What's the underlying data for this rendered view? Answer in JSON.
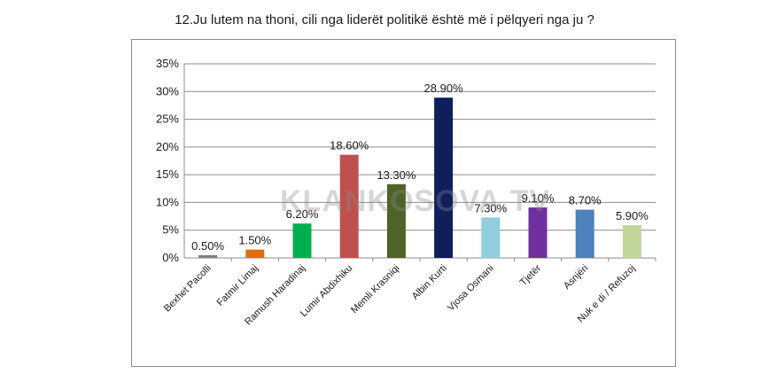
{
  "watermark": "KLANKOSOVA.TV",
  "chart_data": {
    "type": "bar",
    "title": "12.Ju lutem na thoni, cili nga liderët politikë është më i pëlqyeri nga ju ?",
    "xlabel": "",
    "ylabel": "",
    "ylim": [
      0,
      35
    ],
    "yticks": [
      "0%",
      "5%",
      "10%",
      "15%",
      "20%",
      "25%",
      "30%",
      "35%"
    ],
    "grid": true,
    "legend": "none",
    "categories": [
      "Bexhet Pacolli",
      "Fatmir Limaj",
      "Ramush Haradinaj",
      "Lumir Abdixhiku",
      "Memli Krasniqi",
      "Albin Kurti",
      "Vjosa Osmani",
      "Tjetër",
      "Asnjëri",
      "Nuk e di / Refuzoj"
    ],
    "values": [
      0.5,
      1.5,
      6.2,
      18.6,
      13.3,
      28.9,
      7.3,
      9.1,
      8.7,
      5.9
    ],
    "data_labels": [
      "0.50%",
      "1.50%",
      "6.20%",
      "18.60%",
      "13.30%",
      "28.90%",
      "7.30%",
      "9.10%",
      "8.70%",
      "5.90%"
    ],
    "colors": [
      "#7f7f7f",
      "#e36c0a",
      "#00b050",
      "#c0504d",
      "#4f6228",
      "#0f1f5c",
      "#92cddc",
      "#7030a0",
      "#4f81bd",
      "#c3d69b"
    ]
  }
}
